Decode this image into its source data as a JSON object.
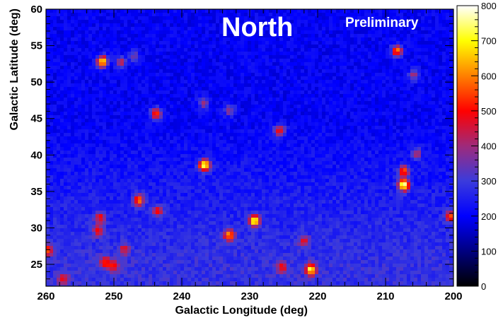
{
  "chart_data": {
    "type": "heatmap",
    "title": "",
    "xlabel": "Galactic Longitude (deg)",
    "ylabel": "Galactic Latitude (deg)",
    "xlim": [
      260,
      200
    ],
    "ylim": [
      22,
      60
    ],
    "x_reversed": true,
    "x_ticks": [
      260,
      250,
      240,
      230,
      220,
      210,
      200
    ],
    "y_ticks": [
      25,
      30,
      35,
      40,
      45,
      50,
      55,
      60
    ],
    "annotations": [
      "North",
      "Preliminary"
    ],
    "colorbar": {
      "range": [
        0,
        800
      ],
      "ticks": [
        0,
        100,
        200,
        300,
        400,
        500,
        600,
        700,
        800
      ],
      "colormap": [
        "#000000",
        "#000080",
        "#0000ff",
        "#3b3bdc",
        "#9f2a7a",
        "#ff0000",
        "#ff8000",
        "#ffff00",
        "#ffffff"
      ]
    },
    "background": {
      "level_high_lat": 200,
      "level_low_lat": 285,
      "transition_lat": [
        45,
        25
      ]
    },
    "hotspots": [
      {
        "l": 251.7,
        "b": 52.8,
        "peak": 720
      },
      {
        "l": 243.8,
        "b": 45.7,
        "peak": 560
      },
      {
        "l": 236.7,
        "b": 38.6,
        "peak": 770
      },
      {
        "l": 229.3,
        "b": 31.0,
        "peak": 700
      },
      {
        "l": 233.0,
        "b": 29.0,
        "peak": 560
      },
      {
        "l": 221.0,
        "b": 24.3,
        "peak": 660
      },
      {
        "l": 225.6,
        "b": 43.3,
        "peak": 520
      },
      {
        "l": 207.3,
        "b": 35.9,
        "peak": 760
      },
      {
        "l": 207.3,
        "b": 37.8,
        "peak": 520
      },
      {
        "l": 208.3,
        "b": 54.3,
        "peak": 600
      },
      {
        "l": 246.3,
        "b": 33.8,
        "peak": 540
      },
      {
        "l": 200.4,
        "b": 31.6,
        "peak": 480
      },
      {
        "l": 259.7,
        "b": 26.9,
        "peak": 480
      },
      {
        "l": 249.0,
        "b": 52.7,
        "peak": 420
      },
      {
        "l": 247.0,
        "b": 53.5,
        "peak": 360
      },
      {
        "l": 236.8,
        "b": 47.2,
        "peak": 400
      },
      {
        "l": 233.0,
        "b": 46.2,
        "peak": 400
      },
      {
        "l": 243.5,
        "b": 32.3,
        "peak": 440
      },
      {
        "l": 252.0,
        "b": 31.4,
        "peak": 440
      },
      {
        "l": 252.3,
        "b": 29.6,
        "peak": 420
      },
      {
        "l": 205.8,
        "b": 51.0,
        "peak": 400
      },
      {
        "l": 205.5,
        "b": 40.2,
        "peak": 400
      },
      {
        "l": 222.0,
        "b": 28.1,
        "peak": 400
      },
      {
        "l": 225.2,
        "b": 24.5,
        "peak": 420
      },
      {
        "l": 251.3,
        "b": 25.3,
        "peak": 460
      },
      {
        "l": 250.0,
        "b": 24.8,
        "peak": 420
      },
      {
        "l": 248.5,
        "b": 27.0,
        "peak": 400
      },
      {
        "l": 257.5,
        "b": 23.0,
        "peak": 420
      }
    ]
  }
}
